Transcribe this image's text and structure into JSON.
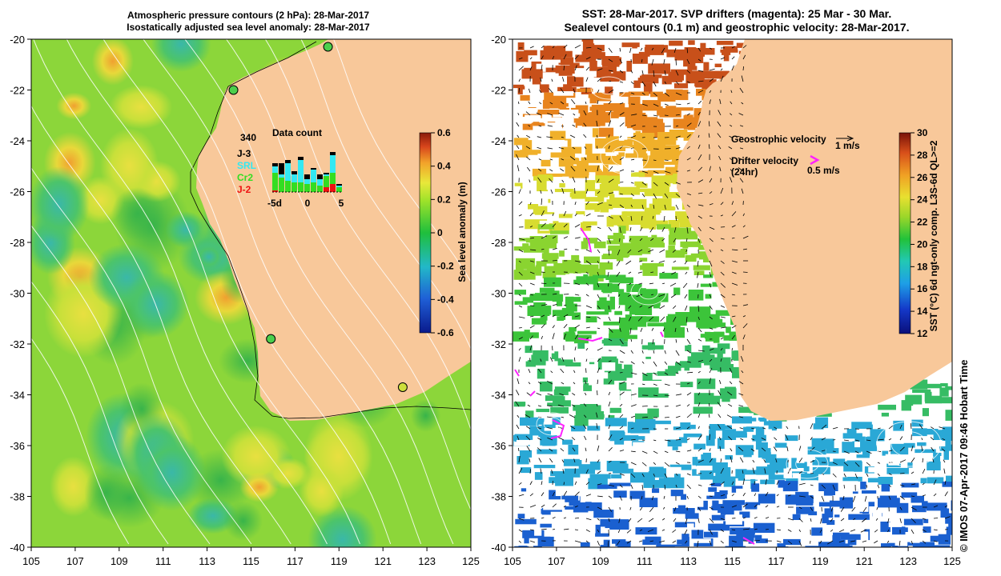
{
  "left_panel": {
    "title_line1": "Atmospheric pressure contours (2 hPa): 28-Mar-2017",
    "title_line2": "Isostatically adjusted sea level anomaly: 28-Mar-2017",
    "colorbar": {
      "label": "Sea level anomaly (m)",
      "ticks": [
        "0.6",
        "0.4",
        "0.2",
        "0",
        "-0.2",
        "-0.4",
        "-0.6"
      ],
      "range": [
        -0.6,
        0.6
      ]
    },
    "data_count": {
      "title": "Data count",
      "total": "340",
      "legend": [
        {
          "name": "J-3",
          "color": "#000000"
        },
        {
          "name": "SRL",
          "color": "#33e8f2"
        },
        {
          "name": "Cr2",
          "color": "#33dd22"
        },
        {
          "name": "J-2",
          "color": "#ee1111"
        }
      ],
      "axis_labels": [
        "-5d",
        "0",
        "5"
      ]
    },
    "tide_gauges": [
      {
        "lon": 118.5,
        "lat": -20.3,
        "color": "#4ccf4c"
      },
      {
        "lon": 114.2,
        "lat": -22.0,
        "color": "#4ccf4c"
      },
      {
        "lon": 115.9,
        "lat": -31.8,
        "color": "#4ccf4c"
      },
      {
        "lon": 121.9,
        "lat": -33.7,
        "color": "#cddf3c"
      }
    ]
  },
  "right_panel": {
    "title_line1": "SST: 28-Mar-2017. SVP drifters (magenta): 25 Mar - 30 Mar.",
    "title_line2": "Sealevel contours (0.1 m) and geostrophic velocity: 28-Mar-2017.",
    "colorbar": {
      "label": "SST (°C) 6d ngt-only comp. L3S-6d QL>=2",
      "ticks": [
        "30",
        "28",
        "26",
        "24",
        "22",
        "20",
        "18",
        "16",
        "14",
        "12"
      ],
      "range": [
        12,
        30
      ]
    },
    "velocity_legend": {
      "geostrophic_label": "Geostrophic velocity",
      "geostrophic_scale": "1 m/s",
      "drifter_label": "Drifter velocity",
      "drifter_sub": "(24hr)",
      "drifter_scale": "0.5 m/s"
    }
  },
  "axes": {
    "y_ticks": [
      "-20",
      "-22",
      "-24",
      "-26",
      "-28",
      "-30",
      "-32",
      "-34",
      "-36",
      "-38",
      "-40"
    ],
    "x_ticks": [
      "105",
      "107",
      "109",
      "111",
      "113",
      "115",
      "117",
      "119",
      "121",
      "123",
      "125"
    ],
    "lon_range": [
      105,
      125
    ],
    "lat_range": [
      -40,
      -20
    ]
  },
  "credit": "© IMOS 07-Apr-2017 09:46 Hobart Time"
}
